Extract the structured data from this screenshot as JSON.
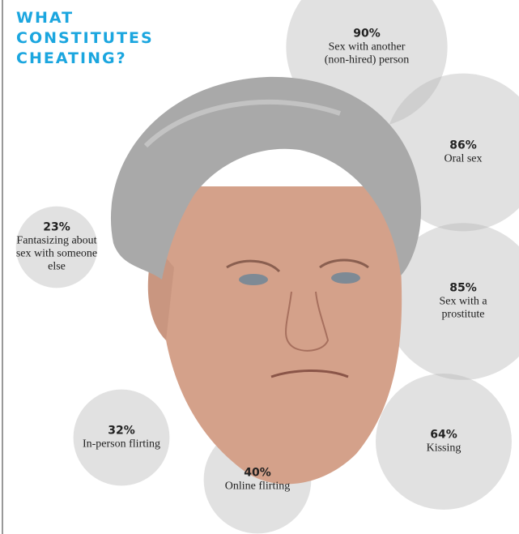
{
  "chart_data": {
    "type": "bubble",
    "title": "WHAT CONSTITUTES CHEATING?",
    "categories": [
      "Sex with another (non-hired) person",
      "Oral sex",
      "Sex with a prostitute",
      "Kissing",
      "Online flirting",
      "In-person flirting",
      "Fantasizing about sex with someone else"
    ],
    "values": [
      90,
      86,
      85,
      64,
      40,
      32,
      23
    ],
    "value_labels": [
      "90%",
      "86%",
      "85%",
      "64%",
      "40%",
      "32%",
      "23%"
    ],
    "color": "#b4b4b4"
  }
}
